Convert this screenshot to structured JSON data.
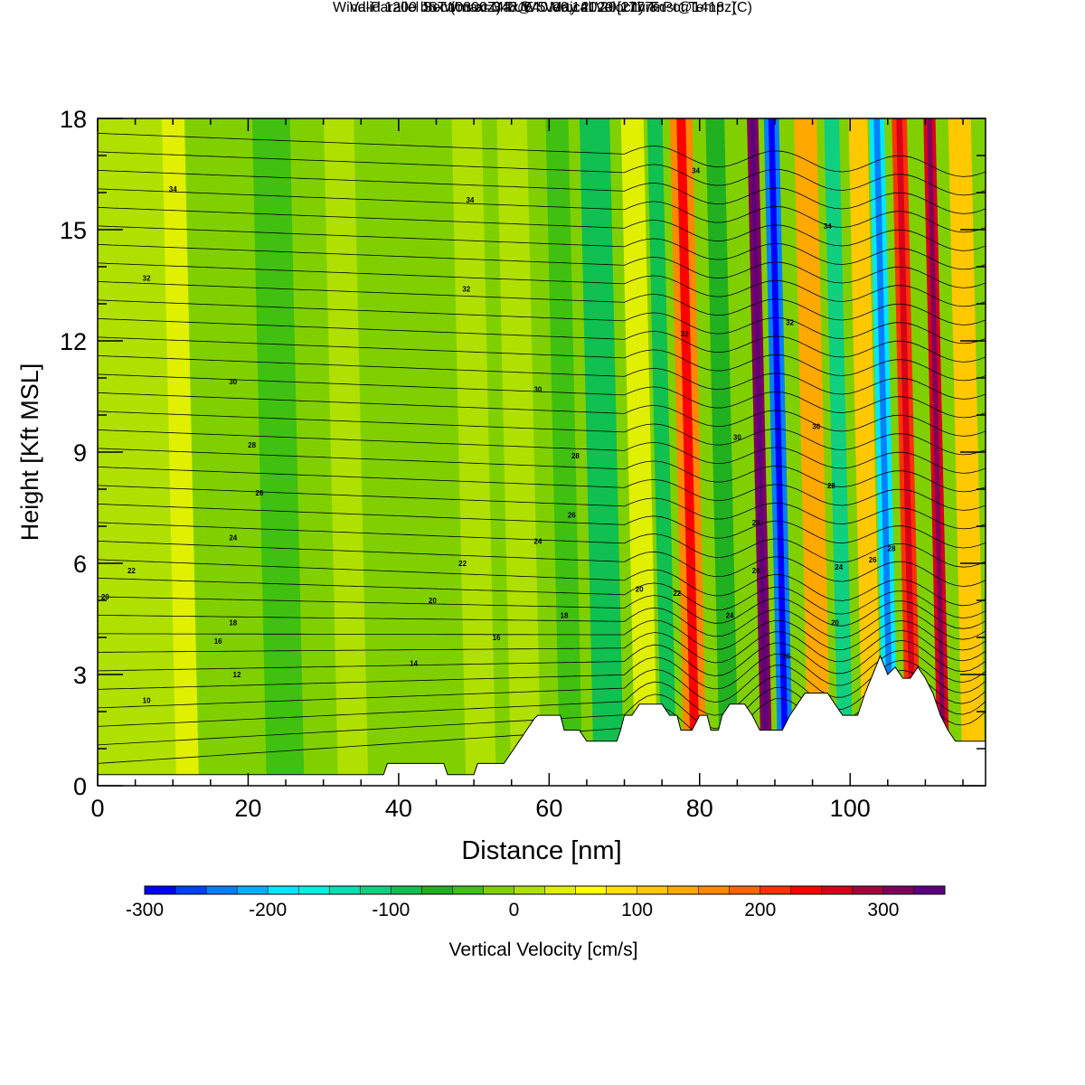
{
  "header": {
    "title": "Wind-Parallel Section at Max W: Vertical Velocity & Pot.Temp.",
    "title_mark": "(C)",
    "valid_prefix": "Valid 1200 JST",
    "valid_utc": "(0300Z)",
    "valid_date": "TUE 5 May 2020",
    "forecast": "[21hrFcst@1418z]",
    "box_info": "boxWmax=348@40.06,141.20,1777m"
  },
  "chart_data": {
    "type": "heatmap",
    "xlabel": "Distance [nm]",
    "ylabel": "Height [Kft MSL]",
    "xlim": [
      0,
      118
    ],
    "ylim": [
      0,
      18
    ],
    "x_ticks": [
      0,
      20,
      40,
      60,
      80,
      100
    ],
    "y_ticks": [
      0,
      3,
      6,
      9,
      12,
      15,
      18
    ],
    "grid": false,
    "colorbar": {
      "label": "Vertical Velocity [cm/s]",
      "placement": "bottom",
      "range": [
        -300,
        350
      ],
      "step": 25,
      "tick_values": [
        -300,
        -200,
        -100,
        0,
        100,
        200,
        300
      ],
      "tick_labels": [
        "-300",
        "-200",
        "-100",
        "0",
        "100",
        "200",
        "300"
      ],
      "colors": [
        "#0000ff",
        "#0040ff",
        "#0080ff",
        "#00b0ff",
        "#00e8ff",
        "#00f0e0",
        "#00e0b0",
        "#10d080",
        "#10c050",
        "#20b020",
        "#40c010",
        "#80d000",
        "#b0e000",
        "#e0f000",
        "#ffff00",
        "#ffe000",
        "#ffc800",
        "#ffa800",
        "#ff8800",
        "#ff6400",
        "#ff3200",
        "#ff0000",
        "#d8001c",
        "#a8003c",
        "#80005c",
        "#5c0080"
      ]
    },
    "vertical_velocity_bands": [
      {
        "x": 3,
        "w": 14,
        "v": 15
      },
      {
        "x": 11,
        "w": 3,
        "v": 30
      },
      {
        "x": 24,
        "w": 5,
        "v": -30
      },
      {
        "x": 33,
        "w": 4,
        "v": 20
      },
      {
        "x": 44,
        "w": 4,
        "v": -25
      },
      {
        "x": 50,
        "w": 4,
        "v": 15
      },
      {
        "x": 56,
        "w": 4,
        "v": 20
      },
      {
        "x": 62,
        "w": 3,
        "v": -40
      },
      {
        "x": 67,
        "w": 4,
        "v": -80
      },
      {
        "x": 72,
        "w": 3,
        "v": 30
      },
      {
        "x": 75,
        "w": 2,
        "v": -100
      },
      {
        "x": 78.5,
        "w": 3,
        "v": 170
      },
      {
        "x": 83,
        "w": 2.5,
        "v": -60
      },
      {
        "x": 88,
        "w": 1.5,
        "v": 300
      },
      {
        "x": 90.5,
        "w": 2,
        "v": -230
      },
      {
        "x": 95,
        "w": 3,
        "v": 130
      },
      {
        "x": 98.5,
        "w": 2,
        "v": -110
      },
      {
        "x": 102,
        "w": 2.5,
        "v": 110
      },
      {
        "x": 104.5,
        "w": 2,
        "v": -190
      },
      {
        "x": 107.5,
        "w": 2,
        "v": 200
      },
      {
        "x": 111.5,
        "w": 1.6,
        "v": 260
      },
      {
        "x": 115.5,
        "w": 3,
        "v": 120
      }
    ],
    "potential_temperature_labels": [
      {
        "x": 1,
        "y": 5.1,
        "t": "20"
      },
      {
        "x": 4.5,
        "y": 5.8,
        "t": "22"
      },
      {
        "x": 6.5,
        "y": 2.3,
        "t": "10"
      },
      {
        "x": 6.5,
        "y": 13.7,
        "t": "32"
      },
      {
        "x": 10,
        "y": 16.1,
        "t": "34"
      },
      {
        "x": 16,
        "y": 3.9,
        "t": "16"
      },
      {
        "x": 18,
        "y": 4.4,
        "t": "18"
      },
      {
        "x": 18,
        "y": 6.7,
        "t": "24"
      },
      {
        "x": 18,
        "y": 10.9,
        "t": "30"
      },
      {
        "x": 18.5,
        "y": 3.0,
        "t": "12"
      },
      {
        "x": 20.5,
        "y": 9.2,
        "t": "28"
      },
      {
        "x": 21.5,
        "y": 7.9,
        "t": "26"
      },
      {
        "x": 42,
        "y": 3.3,
        "t": "14"
      },
      {
        "x": 44.5,
        "y": 5.0,
        "t": "20"
      },
      {
        "x": 48.5,
        "y": 6.0,
        "t": "22"
      },
      {
        "x": 49,
        "y": 13.4,
        "t": "32"
      },
      {
        "x": 49.5,
        "y": 15.8,
        "t": "34"
      },
      {
        "x": 53,
        "y": 4.0,
        "t": "16"
      },
      {
        "x": 58.5,
        "y": 6.6,
        "t": "24"
      },
      {
        "x": 58.5,
        "y": 10.7,
        "t": "30"
      },
      {
        "x": 62,
        "y": 4.6,
        "t": "18"
      },
      {
        "x": 63,
        "y": 7.3,
        "t": "26"
      },
      {
        "x": 63.5,
        "y": 8.9,
        "t": "28"
      },
      {
        "x": 72,
        "y": 5.3,
        "t": "20"
      },
      {
        "x": 77,
        "y": 5.2,
        "t": "22"
      },
      {
        "x": 78,
        "y": 12.2,
        "t": "32"
      },
      {
        "x": 79.5,
        "y": 16.6,
        "t": "34"
      },
      {
        "x": 84,
        "y": 4.6,
        "t": "24"
      },
      {
        "x": 85,
        "y": 9.4,
        "t": "30"
      },
      {
        "x": 87.5,
        "y": 7.1,
        "t": "28"
      },
      {
        "x": 87.5,
        "y": 5.8,
        "t": "26"
      },
      {
        "x": 91.5,
        "y": 3.5,
        "t": "16"
      },
      {
        "x": 92,
        "y": 12.5,
        "t": "32"
      },
      {
        "x": 95.5,
        "y": 9.7,
        "t": "30"
      },
      {
        "x": 97,
        "y": 15.1,
        "t": "34"
      },
      {
        "x": 97.5,
        "y": 8.1,
        "t": "28"
      },
      {
        "x": 98,
        "y": 4.4,
        "t": "20"
      },
      {
        "x": 98.5,
        "y": 5.9,
        "t": "24"
      },
      {
        "x": 103,
        "y": 6.1,
        "t": "26"
      },
      {
        "x": 105.5,
        "y": 6.4,
        "t": "28"
      }
    ],
    "terrain": [
      [
        0,
        0.3
      ],
      [
        5,
        0.3
      ],
      [
        10,
        0.3
      ],
      [
        15,
        0.3
      ],
      [
        20,
        0.3
      ],
      [
        25,
        0.3
      ],
      [
        30,
        0.3
      ],
      [
        35,
        0.3
      ],
      [
        38,
        0.3
      ],
      [
        38.5,
        0.6
      ],
      [
        46,
        0.6
      ],
      [
        46.5,
        0.3
      ],
      [
        50,
        0.3
      ],
      [
        50.5,
        0.6
      ],
      [
        54,
        0.6
      ],
      [
        55,
        0.9
      ],
      [
        56,
        1.2
      ],
      [
        57,
        1.5
      ],
      [
        58,
        1.8
      ],
      [
        58.5,
        1.9
      ],
      [
        61.5,
        1.9
      ],
      [
        62,
        1.5
      ],
      [
        64,
        1.5
      ],
      [
        65,
        1.2
      ],
      [
        69,
        1.2
      ],
      [
        69.5,
        1.5
      ],
      [
        70,
        1.9
      ],
      [
        71,
        1.9
      ],
      [
        72,
        2.2
      ],
      [
        75,
        2.2
      ],
      [
        76,
        1.9
      ],
      [
        77,
        1.9
      ],
      [
        77.5,
        1.5
      ],
      [
        79,
        1.5
      ],
      [
        80,
        1.9
      ],
      [
        81,
        1.9
      ],
      [
        81.5,
        1.5
      ],
      [
        82.5,
        1.5
      ],
      [
        83,
        1.9
      ],
      [
        84,
        2.2
      ],
      [
        86,
        2.2
      ],
      [
        87,
        1.9
      ],
      [
        88,
        1.5
      ],
      [
        89,
        1.5
      ],
      [
        90,
        1.5
      ],
      [
        91,
        1.5
      ],
      [
        92,
        1.9
      ],
      [
        93,
        2.2
      ],
      [
        94,
        2.5
      ],
      [
        97,
        2.5
      ],
      [
        98,
        2.2
      ],
      [
        99,
        1.9
      ],
      [
        100,
        1.9
      ],
      [
        101,
        1.9
      ],
      [
        102,
        2.5
      ],
      [
        103,
        3.0
      ],
      [
        104,
        3.5
      ],
      [
        105,
        3.0
      ],
      [
        106,
        3.2
      ],
      [
        107,
        2.9
      ],
      [
        108,
        2.9
      ],
      [
        109,
        3.2
      ],
      [
        110,
        2.9
      ],
      [
        111,
        2.5
      ],
      [
        112,
        1.9
      ],
      [
        113,
        1.5
      ],
      [
        114,
        1.2
      ],
      [
        115,
        1.2
      ],
      [
        116,
        1.2
      ],
      [
        118,
        1.2
      ]
    ]
  }
}
